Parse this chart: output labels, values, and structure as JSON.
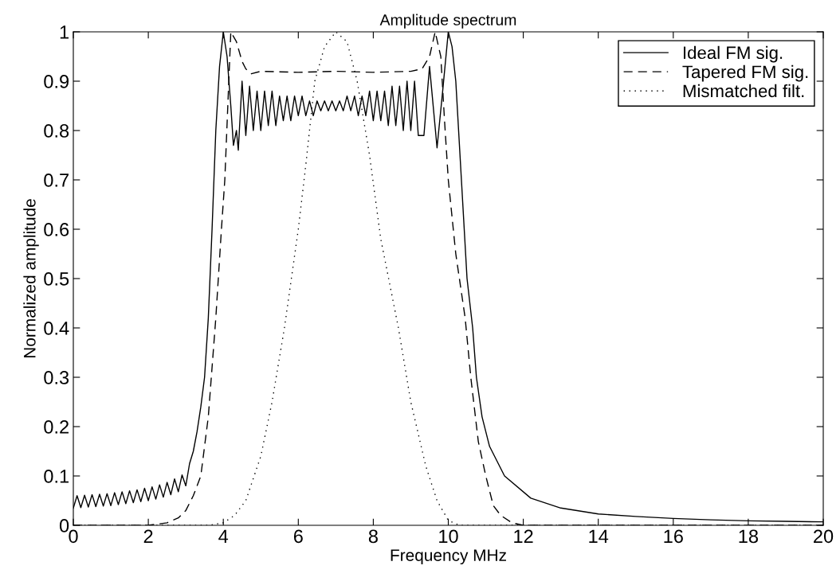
{
  "chart_data": {
    "type": "line",
    "title": "Amplitude spectrum",
    "xlabel": "Frequency MHz",
    "ylabel": "Normalized amplitude",
    "xlim": [
      0,
      20
    ],
    "xticks": [
      0,
      2,
      4,
      6,
      8,
      10,
      12,
      14,
      16,
      18,
      20
    ],
    "ylim": [
      0,
      1
    ],
    "yticks": [
      0,
      0.1,
      0.2,
      0.3,
      0.4,
      0.5,
      0.6,
      0.7,
      0.8,
      0.9,
      1
    ],
    "grid": false,
    "legend": "top right",
    "series": [
      {
        "name": "Ideal FM sig.",
        "color": "#000000",
        "line_style": "solid",
        "x": [
          0,
          0.1,
          0.2,
          0.3,
          0.4,
          0.5,
          0.6,
          0.7,
          0.8,
          0.9,
          1.0,
          1.1,
          1.2,
          1.3,
          1.4,
          1.5,
          1.6,
          1.7,
          1.8,
          1.9,
          2.0,
          2.1,
          2.2,
          2.3,
          2.4,
          2.5,
          2.6,
          2.7,
          2.8,
          2.9,
          3.0,
          3.1,
          3.2,
          3.3,
          3.4,
          3.5,
          3.6,
          3.7,
          3.8,
          3.9,
          4.0,
          4.1,
          4.2,
          4.27,
          4.35,
          4.4,
          4.5,
          4.6,
          4.7,
          4.8,
          4.9,
          5.0,
          5.1,
          5.2,
          5.3,
          5.4,
          5.5,
          5.6,
          5.7,
          5.8,
          5.9,
          6.0,
          6.1,
          6.2,
          6.3,
          6.4,
          6.5,
          6.6,
          6.7,
          6.8,
          6.9,
          7.0,
          7.1,
          7.2,
          7.3,
          7.4,
          7.5,
          7.6,
          7.7,
          7.8,
          7.9,
          8.0,
          8.1,
          8.2,
          8.3,
          8.4,
          8.5,
          8.6,
          8.7,
          8.8,
          8.9,
          9.0,
          9.1,
          9.2,
          9.35,
          9.5,
          9.7,
          9.85,
          10.0,
          10.1,
          10.2,
          10.35,
          10.5,
          10.65,
          10.75,
          10.9,
          11.1,
          11.5,
          12.2,
          13.0,
          14.0,
          15.0,
          16.0,
          17.0,
          18.0,
          19.0,
          20.0
        ],
        "values": [
          0.035,
          0.06,
          0.036,
          0.061,
          0.037,
          0.062,
          0.038,
          0.063,
          0.039,
          0.064,
          0.04,
          0.066,
          0.042,
          0.068,
          0.044,
          0.07,
          0.046,
          0.072,
          0.048,
          0.075,
          0.05,
          0.078,
          0.053,
          0.082,
          0.057,
          0.087,
          0.062,
          0.094,
          0.068,
          0.102,
          0.08,
          0.125,
          0.15,
          0.19,
          0.24,
          0.3,
          0.42,
          0.6,
          0.8,
          0.93,
          1.0,
          0.95,
          0.85,
          0.77,
          0.8,
          0.76,
          0.9,
          0.79,
          0.89,
          0.8,
          0.88,
          0.8,
          0.88,
          0.81,
          0.88,
          0.81,
          0.87,
          0.82,
          0.87,
          0.82,
          0.87,
          0.83,
          0.87,
          0.83,
          0.86,
          0.83,
          0.86,
          0.84,
          0.86,
          0.84,
          0.86,
          0.84,
          0.86,
          0.84,
          0.87,
          0.84,
          0.87,
          0.83,
          0.87,
          0.83,
          0.88,
          0.82,
          0.88,
          0.82,
          0.88,
          0.81,
          0.89,
          0.81,
          0.89,
          0.8,
          0.9,
          0.8,
          0.9,
          0.79,
          0.79,
          0.93,
          0.765,
          0.88,
          1.0,
          0.97,
          0.9,
          0.7,
          0.5,
          0.4,
          0.3,
          0.22,
          0.16,
          0.1,
          0.055,
          0.035,
          0.023,
          0.018,
          0.014,
          0.011,
          0.009,
          0.008,
          0.007
        ]
      },
      {
        "name": "Tapered FM sig.",
        "color": "#000000",
        "line_style": "dashed",
        "x": [
          0,
          2.0,
          2.5,
          2.8,
          3.0,
          3.2,
          3.4,
          3.6,
          3.8,
          3.95,
          4.04,
          4.12,
          4.2,
          4.35,
          4.5,
          4.6,
          4.75,
          5.0,
          6.0,
          7.0,
          8.0,
          9.0,
          9.3,
          9.5,
          9.65,
          9.8,
          9.9,
          10.0,
          10.2,
          10.45,
          10.6,
          10.8,
          11.0,
          11.2,
          11.4,
          11.7,
          12.0,
          20.0
        ],
        "values": [
          0,
          0,
          0.005,
          0.015,
          0.03,
          0.06,
          0.1,
          0.22,
          0.42,
          0.6,
          0.7,
          0.85,
          1.0,
          0.98,
          0.94,
          0.925,
          0.915,
          0.92,
          0.918,
          0.92,
          0.918,
          0.92,
          0.925,
          0.95,
          1.0,
          0.95,
          0.82,
          0.7,
          0.55,
          0.42,
          0.3,
          0.17,
          0.1,
          0.04,
          0.02,
          0.005,
          0,
          0
        ]
      },
      {
        "name": "Mismatched filt.",
        "color": "#000000",
        "line_style": "dotted",
        "x": [
          0,
          3.6,
          4.0,
          4.3,
          4.6,
          5.0,
          5.3,
          5.63,
          6.0,
          6.2,
          6.44,
          6.7,
          7.0,
          7.3,
          7.57,
          7.9,
          8.2,
          8.67,
          9.0,
          9.4,
          9.7,
          10.0,
          10.3,
          20.0
        ],
        "values": [
          0,
          0,
          0.005,
          0.02,
          0.05,
          0.14,
          0.25,
          0.4,
          0.6,
          0.73,
          0.9,
          0.97,
          1.0,
          0.98,
          0.9,
          0.75,
          0.58,
          0.4,
          0.25,
          0.12,
          0.05,
          0.01,
          0,
          0
        ]
      }
    ]
  }
}
